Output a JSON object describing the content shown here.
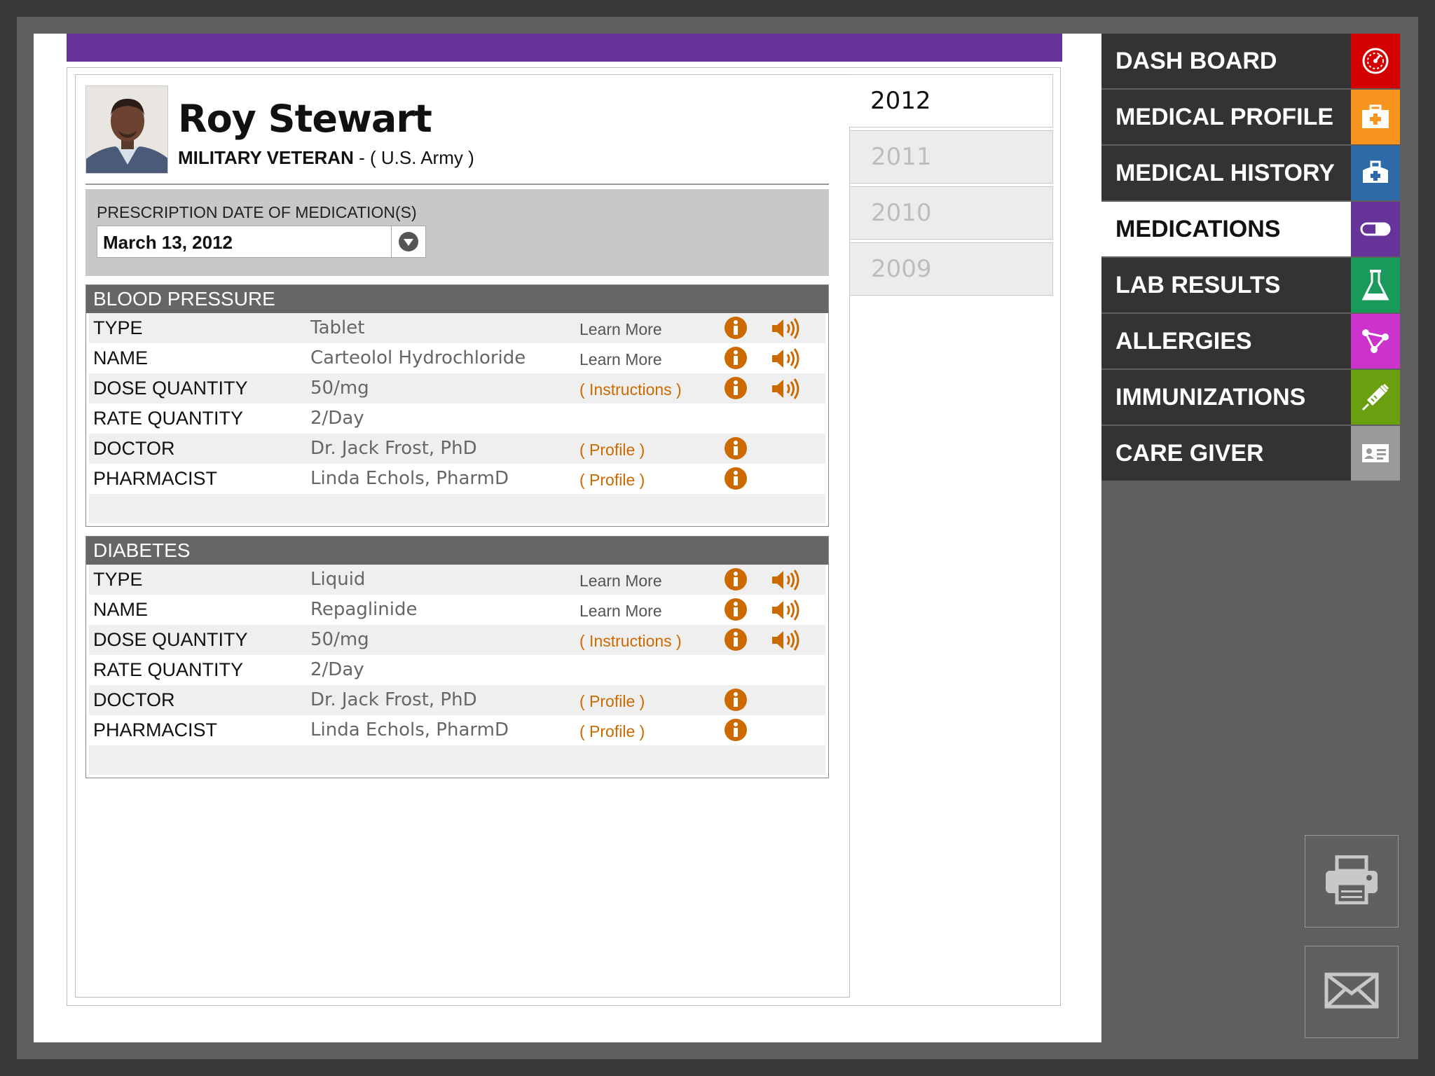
{
  "patient": {
    "name": "Roy Stewart",
    "status": "MILITARY VETERAN",
    "branch": " - ( U.S. Army )"
  },
  "years": [
    "2012",
    "2011",
    "2010",
    "2009"
  ],
  "active_year": "2012",
  "prescription": {
    "label": "PRESCRIPTION DATE OF MEDICATION(S)",
    "selected_date": "March 13, 2012"
  },
  "medications": [
    {
      "title": "BLOOD PRESSURE",
      "rows": [
        {
          "label": "TYPE",
          "value": "Tablet",
          "link": "Learn More"
        },
        {
          "label": "NAME",
          "value": "Carteolol Hydrochloride",
          "link": "Learn More"
        },
        {
          "label": "DOSE QUANTITY",
          "value": "50/mg",
          "link": "( Instructions )"
        },
        {
          "label": "RATE QUANTITY",
          "value": "2/Day",
          "link": ""
        },
        {
          "label": "DOCTOR",
          "value": "Dr. Jack Frost, PhD",
          "link": "( Profile )"
        },
        {
          "label": "PHARMACIST",
          "value": "Linda Echols, PharmD",
          "link": "( Profile )"
        }
      ]
    },
    {
      "title": "DIABETES",
      "rows": [
        {
          "label": "TYPE",
          "value": "Liquid",
          "link": "Learn More"
        },
        {
          "label": "NAME",
          "value": "Repaglinide",
          "link": "Learn More"
        },
        {
          "label": "DOSE QUANTITY",
          "value": "50/mg",
          "link": "( Instructions )"
        },
        {
          "label": "RATE QUANTITY",
          "value": "2/Day",
          "link": ""
        },
        {
          "label": "DOCTOR",
          "value": "Dr. Jack Frost, PhD",
          "link": "( Profile )"
        },
        {
          "label": "PHARMACIST",
          "value": "Linda Echols, PharmD",
          "link": "( Profile )"
        }
      ]
    }
  ],
  "nav": {
    "items": [
      {
        "label": "DASH BOARD",
        "icon": "dashboard-gauge-icon",
        "color": "#d40000"
      },
      {
        "label": "MEDICAL PROFILE",
        "icon": "first-aid-kit-icon",
        "color": "#f7941d"
      },
      {
        "label": "MEDICAL HISTORY",
        "icon": "medical-bag-icon",
        "color": "#2f6aa8"
      },
      {
        "label": "MEDICATIONS",
        "icon": "pill-icon",
        "color": "#663399"
      },
      {
        "label": "LAB RESULTS",
        "icon": "flask-icon",
        "color": "#1a9a5a"
      },
      {
        "label": "ALLERGIES",
        "icon": "molecule-icon",
        "color": "#cc33cc"
      },
      {
        "label": "IMMUNIZATIONS",
        "icon": "syringe-icon",
        "color": "#6aa010"
      },
      {
        "label": "CARE GIVER",
        "icon": "id-card-icon",
        "color": "#9a9a9a"
      }
    ],
    "active": "MEDICATIONS"
  },
  "actions": {
    "print_icon": "printer-icon",
    "email_icon": "envelope-icon"
  },
  "colors": {
    "accent_purple": "#663399",
    "link_orange": "#cc6a00",
    "sidebar_bg": "#333333"
  }
}
